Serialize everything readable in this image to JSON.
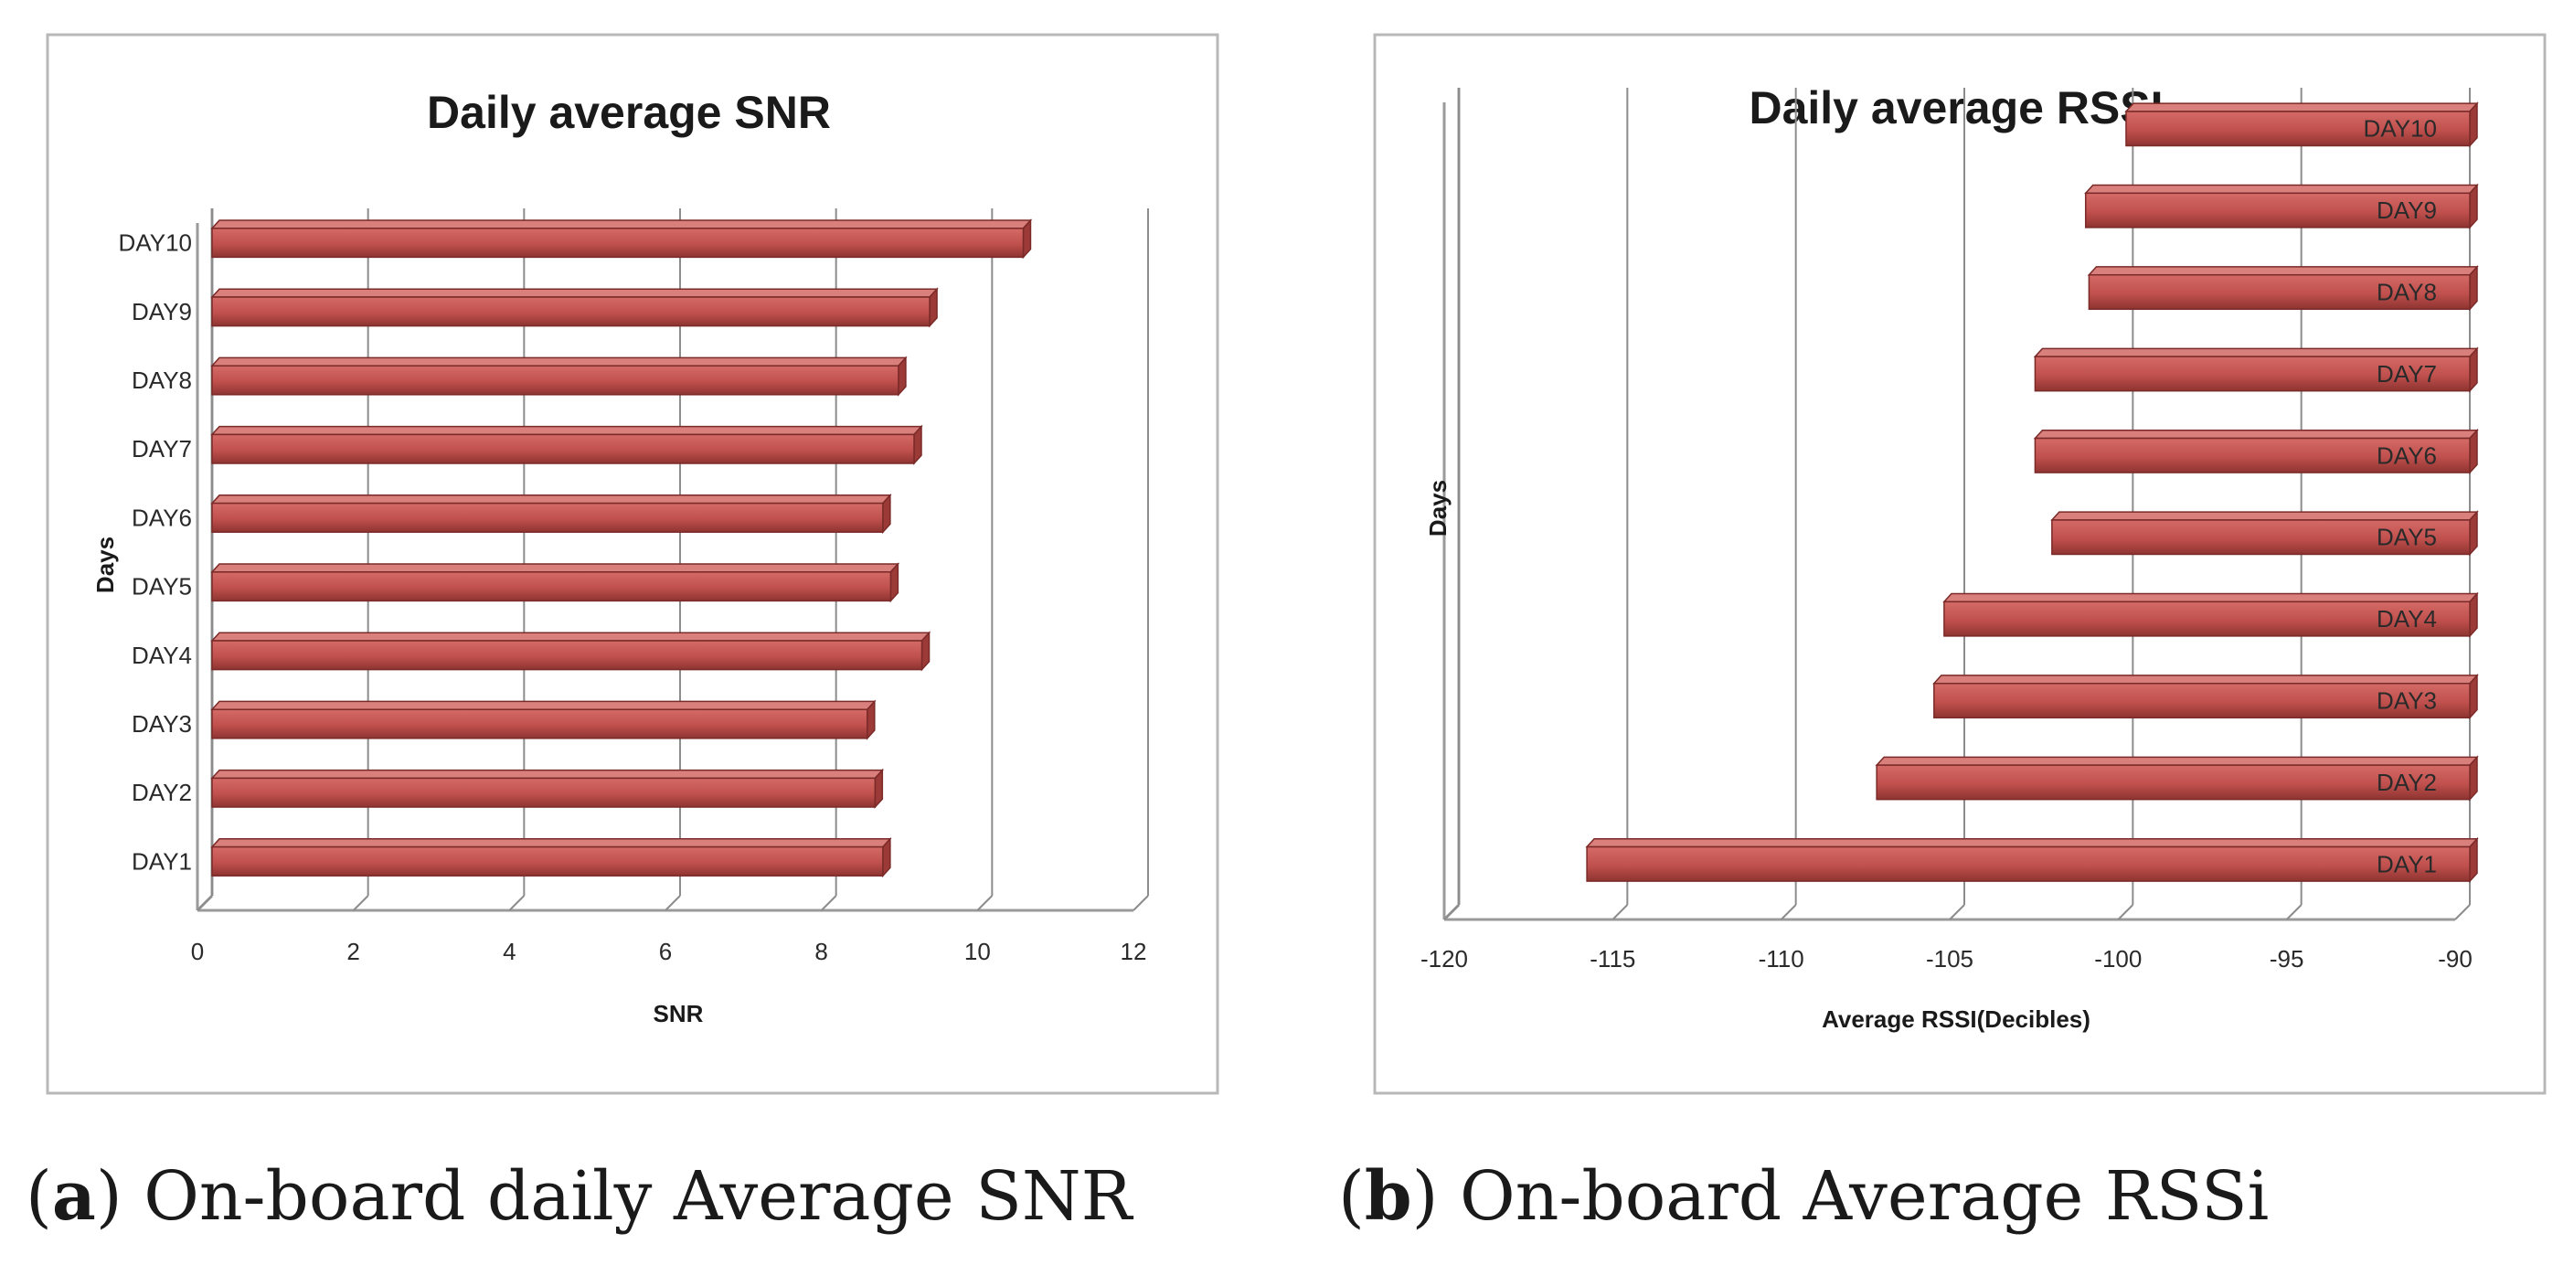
{
  "chart_data": [
    {
      "type": "bar",
      "orientation": "horizontal",
      "title": "Daily average SNR",
      "xlabel": "SNR",
      "ylabel": "Days",
      "xlim": [
        0,
        12
      ],
      "xticks": [
        "0",
        "2",
        "4",
        "6",
        "8",
        "10",
        "12"
      ],
      "categories": [
        "DAY1",
        "DAY2",
        "DAY3",
        "DAY4",
        "DAY5",
        "DAY6",
        "DAY7",
        "DAY8",
        "DAY9",
        "DAY10"
      ],
      "values": [
        8.6,
        8.5,
        8.4,
        9.1,
        8.7,
        8.6,
        9.0,
        8.8,
        9.2,
        10.4
      ],
      "bar_color": "#c0504d",
      "grid": true,
      "caption_label": "a",
      "caption_text": " On-board daily Average SNR"
    },
    {
      "type": "bar",
      "orientation": "horizontal",
      "title": "Daily average RSSI",
      "xlabel": "Average RSSI(Decibles)",
      "ylabel": "Days",
      "xlim": [
        -120,
        -90
      ],
      "xticks": [
        "-120",
        "-115",
        "-110",
        "-105",
        "-100",
        "-95",
        "-90"
      ],
      "categories": [
        "DAY1",
        "DAY2",
        "DAY3",
        "DAY4",
        "DAY5",
        "DAY6",
        "DAY7",
        "DAY8",
        "DAY9",
        "DAY10"
      ],
      "values": [
        -116.2,
        -107.6,
        -105.9,
        -105.6,
        -102.4,
        -102.9,
        -102.9,
        -101.3,
        -101.4,
        -100.2
      ],
      "bar_color": "#c0504d",
      "grid": true,
      "caption_label": "b",
      "caption_text": " On-board Average RSSi"
    }
  ]
}
